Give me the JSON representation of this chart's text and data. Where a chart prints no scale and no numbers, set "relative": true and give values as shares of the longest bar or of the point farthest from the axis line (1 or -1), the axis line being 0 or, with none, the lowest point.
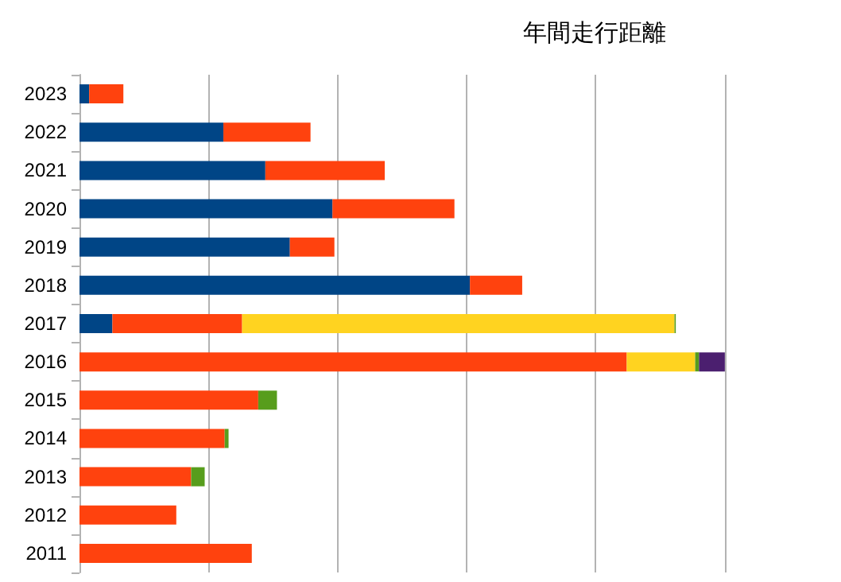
{
  "chart_data": {
    "type": "bar",
    "title": "年間走行距離",
    "orientation": "horizontal",
    "stacked": true,
    "relative": true,
    "grid": "x",
    "categories": [
      "2023",
      "2022",
      "2021",
      "2020",
      "2019",
      "2018",
      "2017",
      "2016",
      "2015",
      "2014",
      "2013",
      "2012",
      "2011"
    ],
    "series": [
      {
        "color": "#004586",
        "values": [
          0.015,
          0.223,
          0.288,
          0.392,
          0.326,
          0.605,
          0.051,
          null,
          null,
          null,
          null,
          null,
          null
        ]
      },
      {
        "color": "#ff420e",
        "values": [
          0.053,
          0.135,
          0.185,
          0.189,
          0.069,
          0.081,
          0.201,
          0.848,
          0.277,
          0.225,
          0.173,
          0.15,
          0.267
        ]
      },
      {
        "color": "#ffd320",
        "values": [
          null,
          null,
          null,
          null,
          null,
          null,
          0.67,
          0.106,
          null,
          null,
          null,
          null,
          null
        ]
      },
      {
        "color": "#579d1c",
        "values": [
          null,
          null,
          null,
          null,
          null,
          null,
          0.002,
          0.006,
          0.029,
          0.006,
          0.021,
          null,
          null
        ]
      },
      {
        "color": "#4b1f6f",
        "values": [
          null,
          null,
          null,
          null,
          null,
          null,
          null,
          0.04,
          null,
          null,
          null,
          null,
          null
        ]
      }
    ]
  }
}
